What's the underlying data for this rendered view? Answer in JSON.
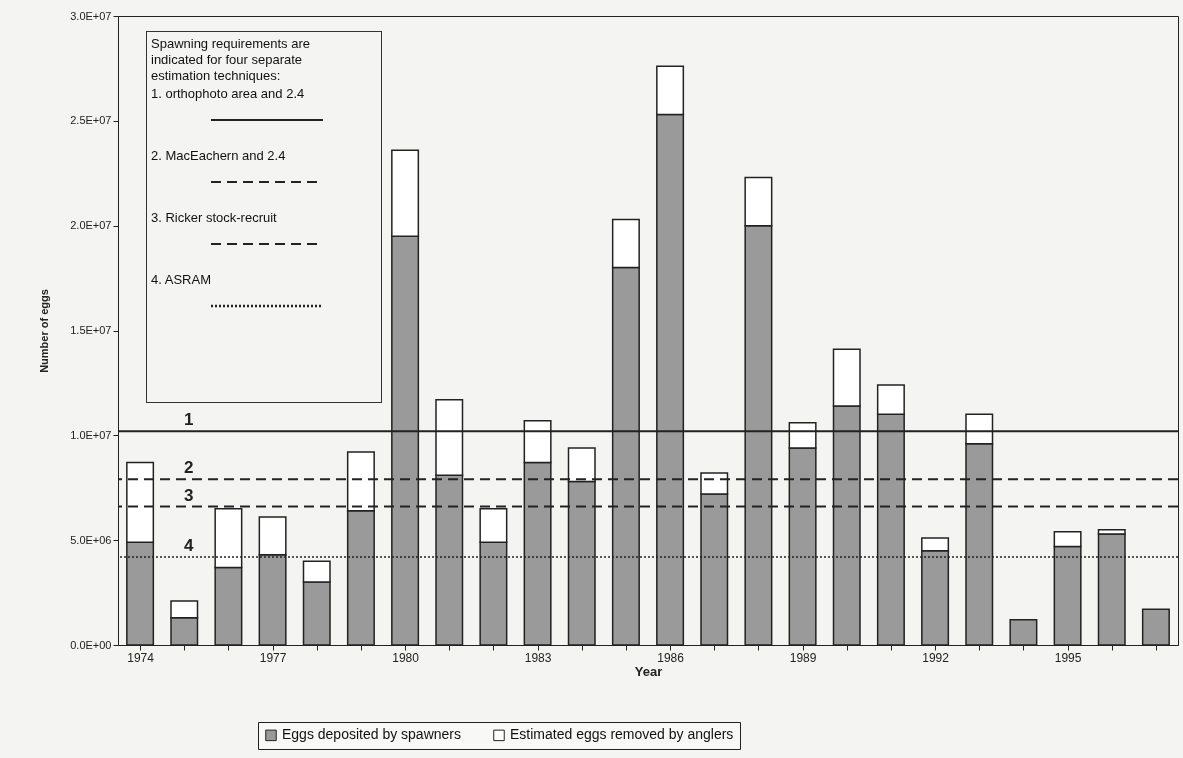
{
  "chart_data": {
    "type": "bar",
    "stacked": true,
    "xlabel": "Year",
    "ylabel": "Number of eggs",
    "categories": [
      "1974",
      null,
      null,
      "1977",
      null,
      null,
      "1980",
      null,
      null,
      "1983",
      null,
      null,
      "1986",
      null,
      null,
      "1989",
      null,
      null,
      "1992",
      null,
      null,
      "1995",
      null,
      null
    ],
    "series": [
      {
        "name": "Eggs deposited by spawners",
        "color": "#9a9a9a",
        "values": [
          4900000,
          1300000,
          3700000,
          4300000,
          3000000,
          6400000,
          19500000,
          8100000,
          4900000,
          8700000,
          7800000,
          18000000,
          25300000,
          7200000,
          20000000,
          9400000,
          11400000,
          11000000,
          4500000,
          9600000,
          1200000,
          4700000,
          5300000,
          1700000
        ]
      },
      {
        "name": "Estimated eggs removed by anglers",
        "color": "#ffffff",
        "values": [
          3800000,
          800000,
          2800000,
          1800000,
          1000000,
          2800000,
          4100000,
          3600000,
          1600000,
          2000000,
          1600000,
          2300000,
          2300000,
          1000000,
          2300000,
          1200000,
          2700000,
          1400000,
          600000,
          1400000,
          null,
          700000,
          200000,
          null
        ]
      }
    ],
    "ylim": [
      0,
      30000000
    ],
    "yticks": [
      {
        "value": 0,
        "label": "0.0E+00"
      },
      {
        "value": 5000000,
        "label": "5.0E+06"
      },
      {
        "value": 10000000,
        "label": "1.0E+07"
      },
      {
        "value": 15000000,
        "label": "1.5E+07"
      },
      {
        "value": 20000000,
        "label": "2.0E+07"
      },
      {
        "value": 25000000,
        "label": "2.5E+07"
      },
      {
        "value": 30000000,
        "label": "3.0E+07"
      }
    ],
    "ref_lines": [
      {
        "axis": "y",
        "value": 10200000,
        "line_style": "solid"
      },
      {
        "axis": "y",
        "value": 7900000,
        "line_style": "dashed"
      },
      {
        "axis": "y",
        "value": 6600000,
        "line_style": "dashed"
      },
      {
        "axis": "y",
        "value": 4200000,
        "line_style": "dotted"
      }
    ],
    "annotations": [
      "Spawning requirements are indicated for four separate estimation techniques:",
      "1.  orthophoto area and 2.4",
      "2.  MacEachern and 2.4",
      "3.  Ricker stock-recruit",
      "4. ASRAM",
      {
        "text": "1",
        "y": 10200000
      },
      {
        "text": "2",
        "y": 7900000
      },
      {
        "text": "3",
        "y": 6600000
      },
      {
        "text": "4",
        "y": 4200000
      }
    ],
    "legend": "bottom",
    "grid": false
  }
}
